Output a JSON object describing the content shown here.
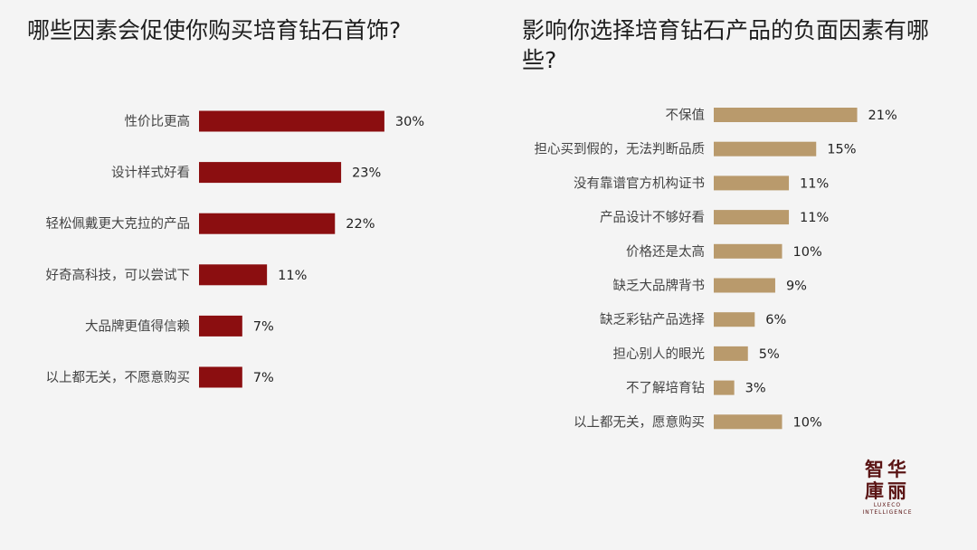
{
  "colors": {
    "left_bar": "#8b0e10",
    "right_bar": "#b99a6c",
    "background": "#f4f4f4"
  },
  "chart_data": [
    {
      "type": "bar",
      "orientation": "horizontal",
      "title": "哪些因素会促使你购买培育钻石首饰?",
      "categories": [
        "性价比更高",
        "设计样式好看",
        "轻松佩戴更大克拉的产品",
        "好奇高科技，可以尝试下",
        "大品牌更值得信赖",
        "以上都无关，不愿意购买"
      ],
      "values": [
        30,
        23,
        22,
        11,
        7,
        7
      ],
      "value_labels": [
        "30%",
        "23%",
        "22%",
        "11%",
        "7%",
        "7%"
      ],
      "unit": "%",
      "grid": false
    },
    {
      "type": "bar",
      "orientation": "horizontal",
      "title": "影响你选择培育钻石产品的负面因素有哪些?",
      "categories": [
        "不保值",
        "担心买到假的，无法判断品质",
        "没有靠谱官方机构证书",
        "产品设计不够好看",
        "价格还是太高",
        "缺乏大品牌背书",
        "缺乏彩钻产品选择",
        "担心别人的眼光",
        "不了解培育钻",
        "以上都无关，愿意购买"
      ],
      "values": [
        21,
        15,
        11,
        11,
        10,
        9,
        6,
        5,
        3,
        10
      ],
      "value_labels": [
        "21%",
        "15%",
        "11%",
        "11%",
        "10%",
        "9%",
        "6%",
        "5%",
        "3%",
        "10%"
      ],
      "unit": "%",
      "grid": false
    }
  ],
  "logo": {
    "line1": "智华",
    "line2": "庫丽",
    "sub1": "LUXECO",
    "sub2": "INTELLIGENCE"
  }
}
